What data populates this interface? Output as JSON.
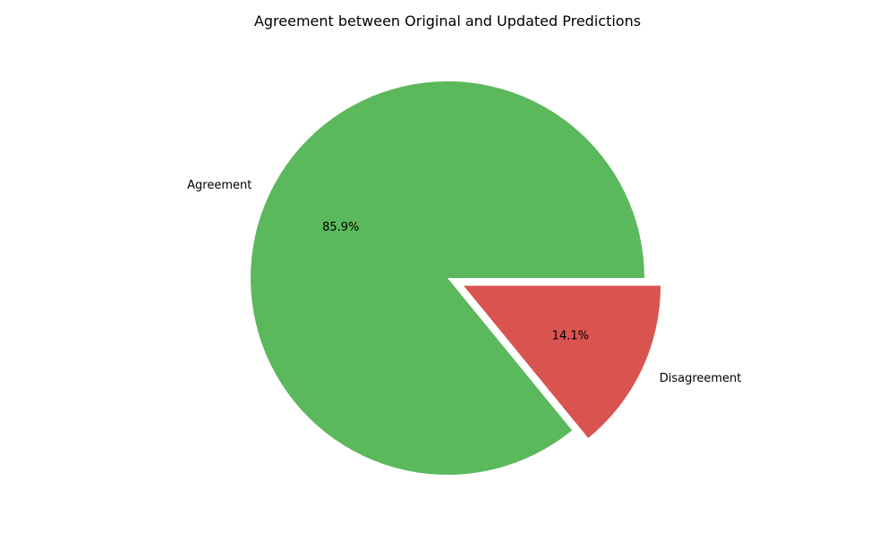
{
  "chart_data": {
    "type": "pie",
    "title": "Agreement between Original and Updated Predictions",
    "slices": [
      {
        "label": "Agreement",
        "value": 85.9,
        "display": "85.9%",
        "color": "#5cb85c",
        "exploded": false
      },
      {
        "label": "Disagreement",
        "value": 14.1,
        "display": "14.1%",
        "color": "#d9534f",
        "exploded": true
      }
    ],
    "legend": "none"
  }
}
